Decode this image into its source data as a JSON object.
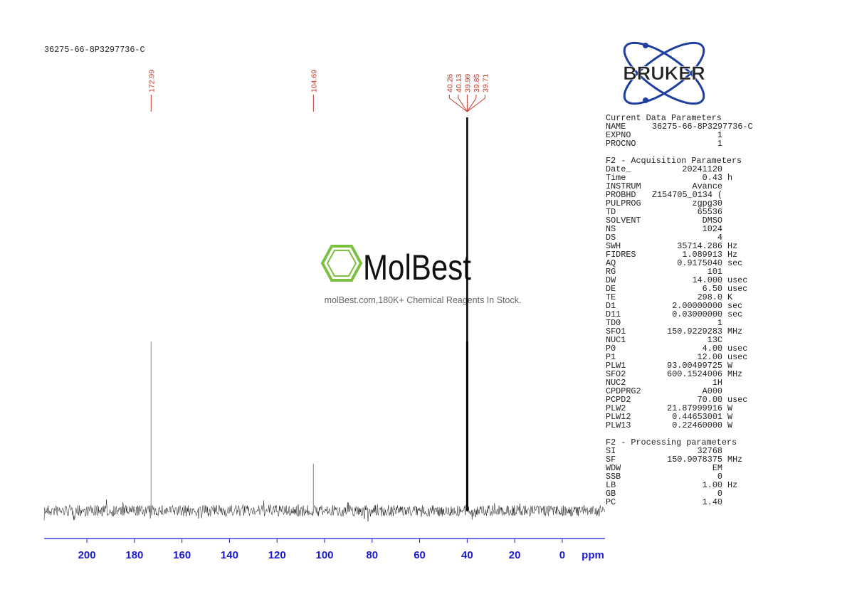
{
  "chart_data": {
    "type": "spectrum",
    "title": "36275-66-8P3297736-C",
    "x": [
      172.99,
      104.69,
      40.26,
      40.13,
      39.99,
      39.85,
      39.71
    ],
    "values": [
      43,
      12,
      43,
      85,
      100,
      85,
      43
    ],
    "xlim": [
      218,
      -18
    ],
    "xticks": [
      200,
      180,
      160,
      140,
      120,
      100,
      80,
      60,
      40,
      20,
      0
    ],
    "ylim": [
      0,
      100
    ],
    "xlabel": "ppm",
    "color": "#303030",
    "label_color": "#c0392b",
    "axis_color": "#1a1ad6"
  },
  "logo": "BRUKER",
  "watermark": {
    "brand": "MolBest",
    "tagline": "molBest.com,180K+ Chemical Reagents In Stock."
  },
  "parameters": [
    {
      "title": "Current Data Parameters",
      "rows": [
        [
          "NAME",
          "36275-66-8P3297736-C"
        ],
        [
          "EXPNO",
          "1"
        ],
        [
          "PROCNO",
          "1"
        ]
      ]
    },
    {
      "title": "F2 - Acquisition Parameters",
      "rows": [
        [
          "Date_",
          "20241120"
        ],
        [
          "Time",
          "0.43",
          "h"
        ],
        [
          "INSTRUM",
          "Avance"
        ],
        [
          "PROBHD",
          "Z154705_0134 ("
        ],
        [
          "PULPROG",
          "zgpg30"
        ],
        [
          "TD",
          "65536"
        ],
        [
          "SOLVENT",
          "DMSO"
        ],
        [
          "NS",
          "1024"
        ],
        [
          "DS",
          "4"
        ],
        [
          "SWH",
          "35714.286",
          "Hz"
        ],
        [
          "FIDRES",
          "1.089913",
          "Hz"
        ],
        [
          "AQ",
          "0.9175040",
          "sec"
        ],
        [
          "RG",
          "101"
        ],
        [
          "DW",
          "14.000",
          "usec"
        ],
        [
          "DE",
          "6.50",
          "usec"
        ],
        [
          "TE",
          "298.0",
          "K"
        ],
        [
          "D1",
          "2.00000000",
          "sec"
        ],
        [
          "D11",
          "0.03000000",
          "sec"
        ],
        [
          "TD0",
          "1"
        ],
        [
          "SFO1",
          "150.9229283",
          "MHz"
        ],
        [
          "NUC1",
          "13C"
        ],
        [
          "P0",
          "4.00",
          "usec"
        ],
        [
          "P1",
          "12.00",
          "usec"
        ],
        [
          "PLW1",
          "93.00499725",
          "W"
        ],
        [
          "SFO2",
          "600.1524006",
          "MHz"
        ],
        [
          "NUC2",
          "1H"
        ],
        [
          "CPDPRG2",
          "A000"
        ],
        [
          "PCPD2",
          "70.00",
          "usec"
        ],
        [
          "PLW2",
          "21.87999916",
          "W"
        ],
        [
          "PLW12",
          "0.44653001",
          "W"
        ],
        [
          "PLW13",
          "0.22460000",
          "W"
        ]
      ]
    },
    {
      "title": "F2 - Processing parameters",
      "rows": [
        [
          "SI",
          "32768"
        ],
        [
          "SF",
          "150.9078375",
          "MHz"
        ],
        [
          "WDW",
          "EM"
        ],
        [
          "SSB",
          "0"
        ],
        [
          "LB",
          "1.00",
          "Hz"
        ],
        [
          "GB",
          "0"
        ],
        [
          "PC",
          "1.40"
        ]
      ]
    }
  ]
}
